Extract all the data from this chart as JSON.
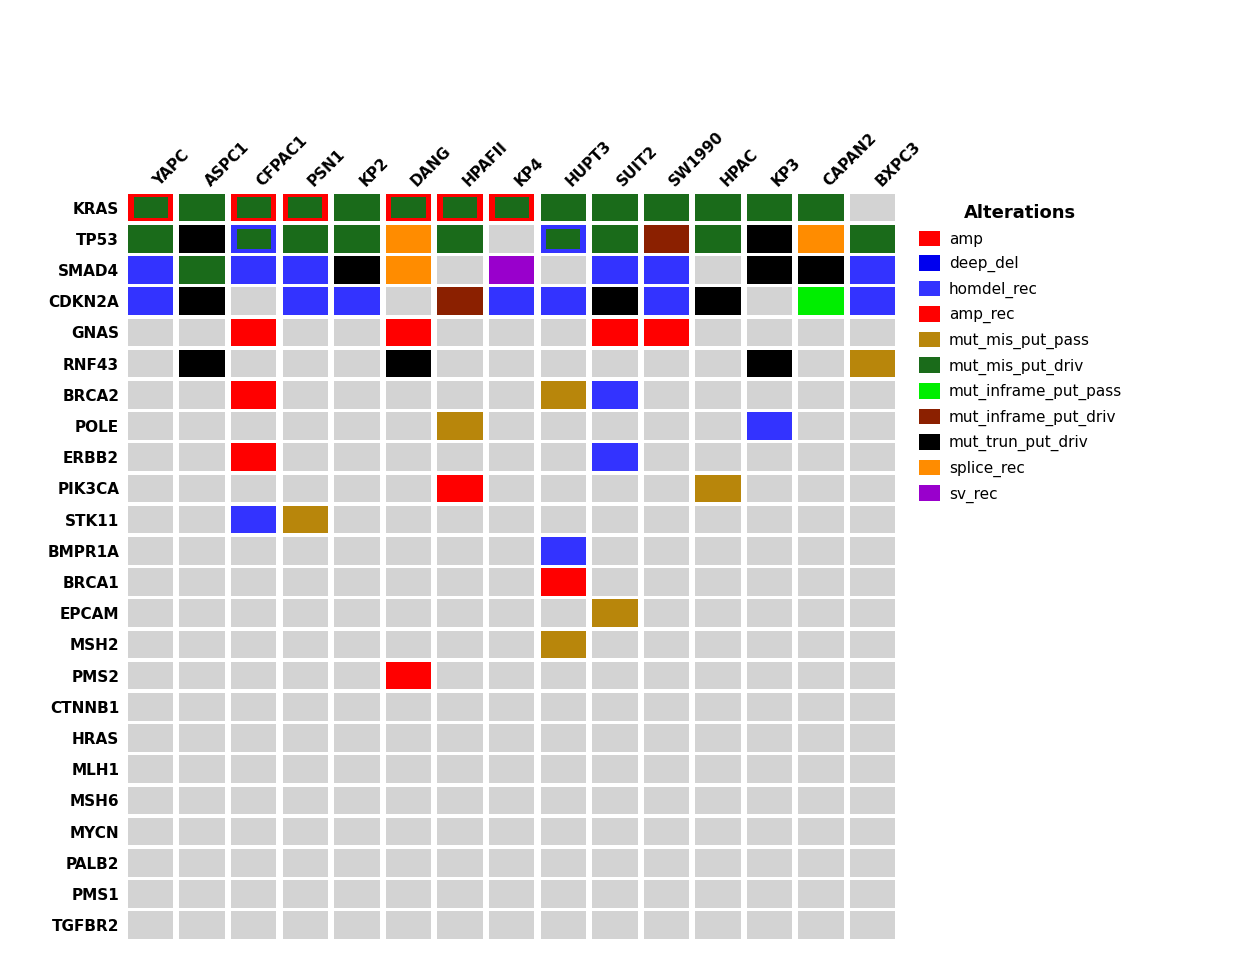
{
  "cell_lines": [
    "YAPC",
    "ASPC1",
    "CFPAC1",
    "PSN1",
    "KP2",
    "DANG",
    "HPAFII",
    "KP4",
    "HUPT3",
    "SUIT2",
    "SW1990",
    "HPAC",
    "KP3",
    "CAPAN2",
    "BXPC3"
  ],
  "genes": [
    "KRAS",
    "TP53",
    "SMAD4",
    "CDKN2A",
    "GNAS",
    "RNF43",
    "BRCA2",
    "POLE",
    "ERBB2",
    "PIK3CA",
    "STK11",
    "BMPR1A",
    "BRCA1",
    "EPCAM",
    "MSH2",
    "PMS2",
    "CTNNB1",
    "HRAS",
    "MLH1",
    "MSH6",
    "MYCN",
    "PALB2",
    "PMS1",
    "TGFBR2"
  ],
  "color_map": {
    "amp": "#FF0000",
    "deep_del": "#0000EE",
    "homdel_rec": "#3333FF",
    "amp_rec": "#FF0000",
    "mut_mis_put_pass": "#B8860B",
    "mut_mis_put_driv": "#1A6B1A",
    "mut_inframe_put_pass": "#00EE00",
    "mut_inframe_put_driv": "#8B2000",
    "mut_trun_put_driv": "#000000",
    "splice_rec": "#FF8C00",
    "sv_rec": "#9900CC"
  },
  "legend_items": [
    [
      "amp",
      "#FF0000"
    ],
    [
      "deep_del",
      "#0000EE"
    ],
    [
      "homdel_rec",
      "#3333FF"
    ],
    [
      "amp_rec",
      "#FF0000"
    ],
    [
      "mut_mis_put_pass",
      "#B8860B"
    ],
    [
      "mut_mis_put_driv",
      "#1A6B1A"
    ],
    [
      "mut_inframe_put_pass",
      "#00EE00"
    ],
    [
      "mut_inframe_put_driv",
      "#8B2000"
    ],
    [
      "mut_trun_put_driv",
      "#000000"
    ],
    [
      "splice_rec",
      "#FF8C00"
    ],
    [
      "sv_rec",
      "#9900CC"
    ]
  ],
  "cells": {
    "KRAS": {
      "YAPC": [
        "amp",
        "mut_mis_put_driv"
      ],
      "ASPC1": [
        "mut_mis_put_driv"
      ],
      "CFPAC1": [
        "amp",
        "mut_mis_put_driv"
      ],
      "PSN1": [
        "amp",
        "mut_mis_put_driv"
      ],
      "KP2": [
        "mut_mis_put_driv"
      ],
      "DANG": [
        "amp",
        "mut_mis_put_driv"
      ],
      "HPAFII": [
        "amp",
        "mut_mis_put_driv"
      ],
      "KP4": [
        "amp",
        "mut_mis_put_driv"
      ],
      "HUPT3": [
        "mut_mis_put_driv"
      ],
      "SUIT2": [
        "mut_mis_put_driv"
      ],
      "SW1990": [
        "mut_mis_put_driv"
      ],
      "HPAC": [
        "mut_mis_put_driv"
      ],
      "KP3": [
        "mut_mis_put_driv"
      ],
      "CAPAN2": [
        "mut_mis_put_driv"
      ],
      "BXPC3": []
    },
    "TP53": {
      "YAPC": [
        "mut_mis_put_driv"
      ],
      "ASPC1": [
        "mut_trun_put_driv"
      ],
      "CFPAC1": [
        "homdel_rec",
        "mut_mis_put_driv"
      ],
      "PSN1": [
        "mut_mis_put_driv"
      ],
      "KP2": [
        "mut_mis_put_driv"
      ],
      "DANG": [
        "splice_rec"
      ],
      "HPAFII": [
        "mut_mis_put_driv"
      ],
      "KP4": [],
      "HUPT3": [
        "homdel_rec",
        "mut_mis_put_driv"
      ],
      "SUIT2": [
        "mut_mis_put_driv"
      ],
      "SW1990": [
        "mut_inframe_put_driv"
      ],
      "HPAC": [
        "mut_mis_put_driv"
      ],
      "KP3": [
        "mut_trun_put_driv"
      ],
      "CAPAN2": [
        "splice_rec"
      ],
      "BXPC3": [
        "mut_mis_put_driv"
      ]
    },
    "SMAD4": {
      "YAPC": [
        "homdel_rec"
      ],
      "ASPC1": [
        "mut_mis_put_driv"
      ],
      "CFPAC1": [
        "homdel_rec"
      ],
      "PSN1": [
        "homdel_rec"
      ],
      "KP2": [
        "mut_trun_put_driv"
      ],
      "DANG": [
        "splice_rec"
      ],
      "HPAFII": [],
      "KP4": [
        "sv_rec"
      ],
      "HUPT3": [],
      "SUIT2": [
        "homdel_rec"
      ],
      "SW1990": [
        "homdel_rec"
      ],
      "HPAC": [],
      "KP3": [
        "mut_trun_put_driv"
      ],
      "CAPAN2": [
        "mut_trun_put_driv"
      ],
      "BXPC3": [
        "homdel_rec"
      ]
    },
    "CDKN2A": {
      "YAPC": [
        "homdel_rec"
      ],
      "ASPC1": [
        "mut_trun_put_driv"
      ],
      "CFPAC1": [],
      "PSN1": [
        "homdel_rec"
      ],
      "KP2": [
        "homdel_rec"
      ],
      "DANG": [],
      "HPAFII": [
        "mut_inframe_put_driv"
      ],
      "KP4": [
        "homdel_rec"
      ],
      "HUPT3": [
        "homdel_rec"
      ],
      "SUIT2": [
        "mut_trun_put_driv"
      ],
      "SW1990": [
        "homdel_rec"
      ],
      "HPAC": [
        "mut_trun_put_driv"
      ],
      "KP3": [],
      "CAPAN2": [
        "mut_inframe_put_pass"
      ],
      "BXPC3": [
        "homdel_rec"
      ]
    },
    "GNAS": {
      "YAPC": [],
      "ASPC1": [],
      "CFPAC1": [
        "amp_rec"
      ],
      "PSN1": [],
      "KP2": [],
      "DANG": [
        "amp_rec"
      ],
      "HPAFII": [],
      "KP4": [],
      "HUPT3": [],
      "SUIT2": [
        "amp_rec"
      ],
      "SW1990": [
        "amp_rec"
      ],
      "HPAC": [],
      "KP3": [],
      "CAPAN2": [],
      "BXPC3": []
    },
    "RNF43": {
      "YAPC": [],
      "ASPC1": [
        "mut_trun_put_driv"
      ],
      "CFPAC1": [],
      "PSN1": [],
      "KP2": [],
      "DANG": [
        "mut_trun_put_driv"
      ],
      "HPAFII": [],
      "KP4": [],
      "HUPT3": [],
      "SUIT2": [],
      "SW1990": [],
      "HPAC": [],
      "KP3": [
        "mut_trun_put_driv"
      ],
      "CAPAN2": [],
      "BXPC3": [
        "mut_mis_put_pass"
      ]
    },
    "BRCA2": {
      "YAPC": [],
      "ASPC1": [],
      "CFPAC1": [
        "amp"
      ],
      "PSN1": [],
      "KP2": [],
      "DANG": [],
      "HPAFII": [],
      "KP4": [],
      "HUPT3": [
        "mut_mis_put_pass"
      ],
      "SUIT2": [
        "homdel_rec"
      ],
      "SW1990": [],
      "HPAC": [],
      "KP3": [],
      "CAPAN2": [],
      "BXPC3": []
    },
    "POLE": {
      "YAPC": [],
      "ASPC1": [],
      "CFPAC1": [],
      "PSN1": [],
      "KP2": [],
      "DANG": [],
      "HPAFII": [
        "mut_mis_put_pass"
      ],
      "KP4": [],
      "HUPT3": [],
      "SUIT2": [],
      "SW1990": [],
      "HPAC": [],
      "KP3": [
        "homdel_rec"
      ],
      "CAPAN2": [],
      "BXPC3": []
    },
    "ERBB2": {
      "YAPC": [],
      "ASPC1": [],
      "CFPAC1": [
        "amp"
      ],
      "PSN1": [],
      "KP2": [],
      "DANG": [],
      "HPAFII": [],
      "KP4": [],
      "HUPT3": [],
      "SUIT2": [
        "homdel_rec"
      ],
      "SW1990": [],
      "HPAC": [],
      "KP3": [],
      "CAPAN2": [],
      "BXPC3": []
    },
    "PIK3CA": {
      "YAPC": [],
      "ASPC1": [],
      "CFPAC1": [],
      "PSN1": [],
      "KP2": [],
      "DANG": [],
      "HPAFII": [
        "amp_rec"
      ],
      "KP4": [],
      "HUPT3": [],
      "SUIT2": [],
      "SW1990": [],
      "HPAC": [
        "mut_mis_put_pass"
      ],
      "KP3": [],
      "CAPAN2": [],
      "BXPC3": []
    },
    "STK11": {
      "YAPC": [],
      "ASPC1": [],
      "CFPAC1": [
        "homdel_rec"
      ],
      "PSN1": [
        "mut_mis_put_pass"
      ],
      "KP2": [],
      "DANG": [],
      "HPAFII": [],
      "KP4": [],
      "HUPT3": [],
      "SUIT2": [],
      "SW1990": [],
      "HPAC": [],
      "KP3": [],
      "CAPAN2": [],
      "BXPC3": []
    },
    "BMPR1A": {
      "YAPC": [],
      "ASPC1": [],
      "CFPAC1": [],
      "PSN1": [],
      "KP2": [],
      "DANG": [],
      "HPAFII": [],
      "KP4": [],
      "HUPT3": [
        "homdel_rec"
      ],
      "SUIT2": [],
      "SW1990": [],
      "HPAC": [],
      "KP3": [],
      "CAPAN2": [],
      "BXPC3": []
    },
    "BRCA1": {
      "YAPC": [],
      "ASPC1": [],
      "CFPAC1": [],
      "PSN1": [],
      "KP2": [],
      "DANG": [],
      "HPAFII": [],
      "KP4": [],
      "HUPT3": [
        "amp_rec"
      ],
      "SUIT2": [],
      "SW1990": [],
      "HPAC": [],
      "KP3": [],
      "CAPAN2": [],
      "BXPC3": []
    },
    "EPCAM": {
      "YAPC": [],
      "ASPC1": [],
      "CFPAC1": [],
      "PSN1": [],
      "KP2": [],
      "DANG": [],
      "HPAFII": [],
      "KP4": [],
      "HUPT3": [],
      "SUIT2": [
        "mut_mis_put_pass"
      ],
      "SW1990": [],
      "HPAC": [],
      "KP3": [],
      "CAPAN2": [],
      "BXPC3": []
    },
    "MSH2": {
      "YAPC": [],
      "ASPC1": [],
      "CFPAC1": [],
      "PSN1": [],
      "KP2": [],
      "DANG": [],
      "HPAFII": [],
      "KP4": [],
      "HUPT3": [
        "mut_mis_put_pass"
      ],
      "SUIT2": [],
      "SW1990": [],
      "HPAC": [],
      "KP3": [],
      "CAPAN2": [],
      "BXPC3": []
    },
    "PMS2": {
      "YAPC": [],
      "ASPC1": [],
      "CFPAC1": [],
      "PSN1": [],
      "KP2": [],
      "DANG": [
        "amp_rec"
      ],
      "HPAFII": [],
      "KP4": [],
      "HUPT3": [],
      "SUIT2": [],
      "SW1990": [],
      "HPAC": [],
      "KP3": [],
      "CAPAN2": [],
      "BXPC3": []
    },
    "CTNNB1": {
      "YAPC": [],
      "ASPC1": [],
      "CFPAC1": [],
      "PSN1": [],
      "KP2": [],
      "DANG": [],
      "HPAFII": [],
      "KP4": [],
      "HUPT3": [],
      "SUIT2": [],
      "SW1990": [],
      "HPAC": [],
      "KP3": [],
      "CAPAN2": [],
      "BXPC3": []
    },
    "HRAS": {
      "YAPC": [],
      "ASPC1": [],
      "CFPAC1": [],
      "PSN1": [],
      "KP2": [],
      "DANG": [],
      "HPAFII": [],
      "KP4": [],
      "HUPT3": [],
      "SUIT2": [],
      "SW1990": [],
      "HPAC": [],
      "KP3": [],
      "CAPAN2": [],
      "BXPC3": []
    },
    "MLH1": {
      "YAPC": [],
      "ASPC1": [],
      "CFPAC1": [],
      "PSN1": [],
      "KP2": [],
      "DANG": [],
      "HPAFII": [],
      "KP4": [],
      "HUPT3": [],
      "SUIT2": [],
      "SW1990": [],
      "HPAC": [],
      "KP3": [],
      "CAPAN2": [],
      "BXPC3": []
    },
    "MSH6": {
      "YAPC": [],
      "ASPC1": [],
      "CFPAC1": [],
      "PSN1": [],
      "KP2": [],
      "DANG": [],
      "HPAFII": [],
      "KP4": [],
      "HUPT3": [],
      "SUIT2": [],
      "SW1990": [],
      "HPAC": [],
      "KP3": [],
      "CAPAN2": [],
      "BXPC3": []
    },
    "MYCN": {
      "YAPC": [],
      "ASPC1": [],
      "CFPAC1": [],
      "PSN1": [],
      "KP2": [],
      "DANG": [],
      "HPAFII": [],
      "KP4": [],
      "HUPT3": [],
      "SUIT2": [],
      "SW1990": [],
      "HPAC": [],
      "KP3": [],
      "CAPAN2": [],
      "BXPC3": []
    },
    "PALB2": {
      "YAPC": [],
      "ASPC1": [],
      "CFPAC1": [],
      "PSN1": [],
      "KP2": [],
      "DANG": [],
      "HPAFII": [],
      "KP4": [],
      "HUPT3": [],
      "SUIT2": [],
      "SW1990": [],
      "HPAC": [],
      "KP3": [],
      "CAPAN2": [],
      "BXPC3": []
    },
    "PMS1": {
      "YAPC": [],
      "ASPC1": [],
      "CFPAC1": [],
      "PSN1": [],
      "KP2": [],
      "DANG": [],
      "HPAFII": [],
      "KP4": [],
      "HUPT3": [],
      "SUIT2": [],
      "SW1990": [],
      "HPAC": [],
      "KP3": [],
      "CAPAN2": [],
      "BXPC3": []
    },
    "TGFBR2": {
      "YAPC": [],
      "ASPC1": [],
      "CFPAC1": [],
      "PSN1": [],
      "KP2": [],
      "DANG": [],
      "HPAFII": [],
      "KP4": [],
      "HUPT3": [],
      "SUIT2": [],
      "SW1990": [],
      "HPAC": [],
      "KP3": [],
      "CAPAN2": [],
      "BXPC3": []
    }
  },
  "cell_bg": "#D3D3D3",
  "cell_border": "#FFFFFF",
  "fig_bg": "#FFFFFF"
}
